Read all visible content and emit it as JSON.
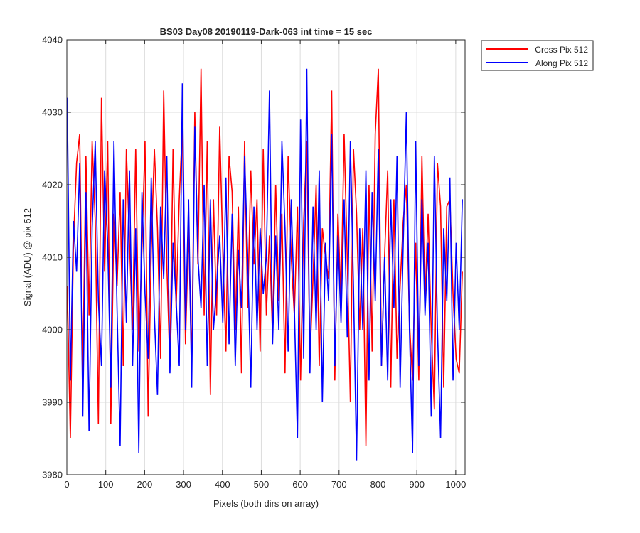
{
  "chart_data": {
    "type": "line",
    "title": "BS03 Day08 20190119-Dark-063 int time = 15 sec",
    "xlabel": "Pixels (both dirs on array)",
    "ylabel": "Signal (ADU) @ pix 512",
    "xlim": [
      0,
      1024
    ],
    "ylim": [
      3980,
      4040
    ],
    "xticks": [
      "0",
      "100",
      "200",
      "300",
      "400",
      "500",
      "600",
      "700",
      "800",
      "900",
      "1000"
    ],
    "yticks": [
      "3980",
      "3990",
      "4000",
      "4010",
      "4020",
      "4030",
      "4040"
    ],
    "grid": true,
    "legend_position": "outside-top-right",
    "series": [
      {
        "name": "Cross Pix 512",
        "color": "#ff0000",
        "x_range": [
          1,
          1024
        ],
        "sample_step": 8,
        "values": [
          4006,
          3985,
          4012,
          4023,
          4027,
          3994,
          4024,
          4002,
          4026,
          4015,
          3987,
          4032,
          4008,
          4026,
          3987,
          4016,
          4006,
          4019,
          3995,
          4025,
          4012,
          4000,
          4025,
          3997,
          4011,
          4026,
          3988,
          4011,
          4025,
          4014,
          3996,
          4033,
          4009,
          3995,
          4025,
          4003,
          4018,
          4028,
          3998,
          4014,
          3995,
          4030,
          4009,
          4036,
          4002,
          4026,
          3991,
          4018,
          4002,
          4028,
          4011,
          3997,
          4024,
          4019,
          4000,
          4017,
          3994,
          4026,
          4003,
          4022,
          4009,
          4018,
          3997,
          4025,
          4002,
          4013,
          3999,
          4020,
          4004,
          4016,
          3994,
          4024,
          4010,
          4002,
          4017,
          3993,
          4015,
          4026,
          3996,
          4007,
          4020,
          3995,
          4014,
          4010,
          4007,
          4033,
          3993,
          4016,
          4004,
          4027,
          4010,
          3990,
          4025,
          4016,
          4000,
          4014,
          3984,
          4020,
          3997,
          4027,
          4036,
          3995,
          4010,
          4022,
          3992,
          4018,
          3996,
          4006,
          4015,
          4020,
          4001,
          3993,
          4012,
          3993,
          4024,
          4004,
          4016,
          4000,
          3989,
          4023,
          4017,
          3992,
          4017,
          4018,
          4005,
          3996,
          3994,
          4008
        ]
      },
      {
        "name": "Along Pix 512",
        "color": "#0000ff",
        "x_range": [
          1,
          1024
        ],
        "sample_step": 8,
        "values": [
          4032,
          3993,
          4015,
          4008,
          4023,
          3988,
          4019,
          3986,
          4014,
          4026,
          4004,
          3995,
          4022,
          4012,
          3992,
          4026,
          4003,
          3984,
          4018,
          4001,
          4022,
          3995,
          4014,
          3983,
          4019,
          4005,
          3996,
          4021,
          4002,
          3991,
          4017,
          4007,
          4024,
          3994,
          4012,
          4004,
          3995,
          4034,
          4000,
          4018,
          3992,
          4028,
          4010,
          4003,
          4020,
          3995,
          4018,
          4000,
          4006,
          4013,
          4001,
          4021,
          3998,
          4016,
          3995,
          4011,
          4003,
          4024,
          4010,
          3992,
          4017,
          4000,
          4014,
          4005,
          4010,
          4033,
          3998,
          4013,
          4000,
          4026,
          4014,
          3997,
          4018,
          4003,
          3985,
          4029,
          3996,
          4036,
          3994,
          4017,
          4000,
          4022,
          3990,
          4012,
          4004,
          4027,
          3995,
          4013,
          4001,
          4018,
          3999,
          4026,
          4006,
          3982,
          4014,
          4000,
          4022,
          3993,
          4019,
          4004,
          4025,
          3995,
          4010,
          3993,
          4018,
          4003,
          4024,
          3992,
          4012,
          4030,
          4000,
          3983,
          4026,
          3995,
          4018,
          4002,
          4012,
          3988,
          4024,
          4000,
          3985,
          4014,
          4004,
          4021,
          3993,
          4012,
          4000,
          4018
        ]
      }
    ]
  }
}
